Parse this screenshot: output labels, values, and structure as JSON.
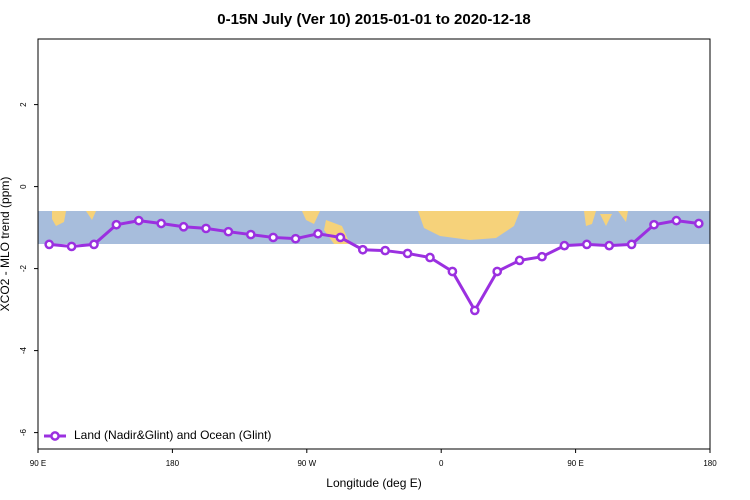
{
  "chart_data": {
    "type": "line",
    "title": "0-15N July (Ver 10)   2015-01-01 to 2020-12-18",
    "x_label": "Longitude (deg E)",
    "y_label": "XCO2 - MLO trend (ppm)",
    "x": [
      97.5,
      112.5,
      127.5,
      142.5,
      157.5,
      172.5,
      187.5,
      202.5,
      217.5,
      232.5,
      247.5,
      262.5,
      277.5,
      292.5,
      307.5,
      322.5,
      337.5,
      352.5,
      367.5,
      382.5,
      397.5,
      412.5,
      427.5,
      442.5,
      457.5,
      472.5,
      487.5,
      502.5,
      517.5,
      532.5
    ],
    "series": [
      {
        "name": "Land (Nadir&Glint) and Ocean (Glint)",
        "color": "#9b30e0",
        "values": [
          -1.41,
          -1.46,
          -1.41,
          -0.93,
          -0.83,
          -0.9,
          -0.98,
          -1.02,
          -1.1,
          -1.17,
          -1.24,
          -1.27,
          -1.15,
          -1.24,
          -1.54,
          -1.56,
          -1.63,
          -1.73,
          -2.07,
          -3.02,
          -2.07,
          -1.8,
          -1.71,
          -1.44,
          -1.41,
          -1.44,
          -1.41,
          -0.93,
          -0.83,
          -0.9
        ]
      }
    ],
    "xlim": [
      90,
      540
    ],
    "xticks": [
      {
        "value": 90,
        "label": "90 E"
      },
      180,
      {
        "value": 270,
        "label": "90 W"
      },
      {
        "value": 360,
        "label": "0"
      },
      {
        "value": 450,
        "label": "90 E"
      },
      {
        "value": 540,
        "label": "180"
      }
    ],
    "ylim": [
      -6.4,
      3.6
    ],
    "yticks": [
      2,
      0,
      -2,
      -4,
      -6
    ],
    "legend": "bottom-left"
  }
}
